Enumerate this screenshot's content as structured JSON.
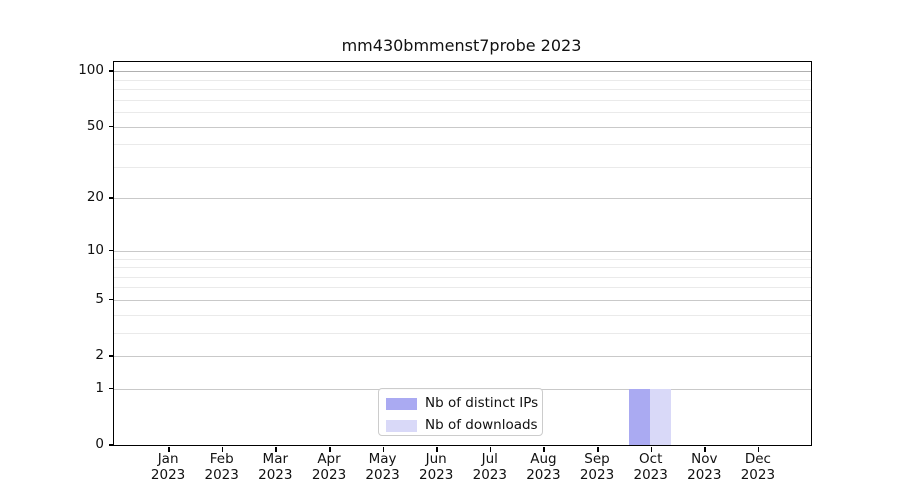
{
  "figure": {
    "background": "#ffffff"
  },
  "chart_data": {
    "type": "bar",
    "title": "mm430bmmenst7probe 2023",
    "categories": [
      "Jan",
      "Feb",
      "Mar",
      "Apr",
      "May",
      "Jun",
      "Jul",
      "Aug",
      "Sep",
      "Oct",
      "Nov",
      "Dec"
    ],
    "category_year": "2023",
    "series": [
      {
        "name": "Nb of distinct IPs",
        "color": "#aaaaf2",
        "values": [
          0,
          0,
          0,
          0,
          0,
          0,
          0,
          0,
          0,
          1,
          0,
          0
        ]
      },
      {
        "name": "Nb of downloads",
        "color": "#d9d9f8",
        "values": [
          0,
          0,
          0,
          0,
          0,
          0,
          0,
          0,
          0,
          1,
          0,
          0
        ]
      }
    ],
    "y_scale": "log1p",
    "ylim": [
      0,
      112
    ],
    "y_major_ticks": [
      0,
      1,
      2,
      5,
      10,
      20,
      50,
      100
    ],
    "y_minor_gridlines": [
      3,
      4,
      6,
      7,
      8,
      9,
      30,
      40,
      60,
      70,
      80,
      90
    ],
    "grid": "horizontal",
    "legend_position": "lower-center-inside"
  },
  "colors": {
    "grid_major": "#c9c9c9",
    "grid_top": "#b0b0b0",
    "grid_minor": "#eaeaea",
    "axis": "#000000",
    "legend_border": "#cccccc"
  }
}
